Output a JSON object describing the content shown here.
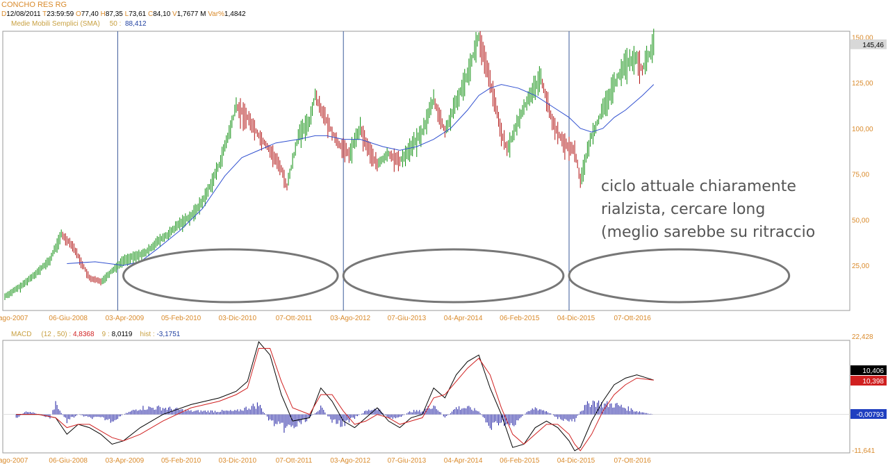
{
  "header": {
    "title": "CONCHO RES RG",
    "ohlc": [
      {
        "k": "D",
        "v": "12/08/2011"
      },
      {
        "k": "T",
        "v": "23:59:59"
      },
      {
        "k": "O",
        "v": "77,40"
      },
      {
        "k": "H",
        "v": "87,35"
      },
      {
        "k": "L",
        "v": "73,61"
      },
      {
        "k": "C",
        "v": "84,10"
      },
      {
        "k": "V",
        "v": "1,7677 M"
      },
      {
        "k": "Var%",
        "v": "1,4842"
      }
    ],
    "sma_label": "Medie Mobili Semplici (SMA)",
    "sma_period": "50 :",
    "sma_value": "88,412"
  },
  "macd_legend": {
    "label": "MACD",
    "params": "(12 , 50) :",
    "macd": "4,8368",
    "signal_period": "9 :",
    "signal": "8,0119",
    "hist_label": "hist :",
    "hist": "-3,1751"
  },
  "annotation": {
    "lines": [
      "ciclo attuale chiaramente",
      "rialzista, cercare long",
      "(meglio sarebbe su ritraccio"
    ]
  },
  "colors": {
    "price": "#0f8f0f",
    "price_down": "#b01010",
    "sma": "#3050d0",
    "macd": "#000000",
    "signal": "#d02020",
    "hist": "#1a1aa0",
    "axis_label": "#d98a2b",
    "cycle_line": "#3a5a9a",
    "ellipse": "#777777"
  },
  "chart_data": [
    {
      "type": "candlestick",
      "title": "CONCHO RES RG",
      "xlabel": "",
      "ylabel": "",
      "ylim": [
        3,
        152
      ],
      "yticks": [
        150,
        125,
        100,
        75,
        50,
        25
      ],
      "ytick_labels": [
        "150,00",
        "125,00",
        "100,00",
        "75,00",
        "50,00",
        "25,00"
      ],
      "last_value_label": "145,46",
      "x_tick_labels": [
        "ago-2007",
        "06-Giu-2008",
        "03-Apr-2009",
        "05-Feb-2010",
        "03-Dic-2010",
        "07-Ott-2011",
        "03-Ago-2012",
        "07-Giu-2013",
        "04-Apr-2014",
        "06-Feb-2015",
        "04-Dic-2015",
        "07-Ott-2016"
      ],
      "x_tick_months": [
        0,
        10,
        20,
        30,
        40,
        50,
        60,
        70,
        80,
        90,
        100,
        110
      ],
      "cycle_markers_months": [
        20,
        60,
        100
      ],
      "price_path": [
        [
          0,
          8
        ],
        [
          3,
          14
        ],
        [
          6,
          22
        ],
        [
          8,
          28
        ],
        [
          10,
          42
        ],
        [
          12,
          36
        ],
        [
          14,
          24
        ],
        [
          15,
          18
        ],
        [
          17,
          16
        ],
        [
          19,
          22
        ],
        [
          21,
          28
        ],
        [
          23,
          30
        ],
        [
          25,
          32
        ],
        [
          27,
          38
        ],
        [
          29,
          42
        ],
        [
          31,
          48
        ],
        [
          33,
          52
        ],
        [
          35,
          60
        ],
        [
          36,
          66
        ],
        [
          38,
          80
        ],
        [
          40,
          100
        ],
        [
          41,
          112
        ],
        [
          43,
          106
        ],
        [
          45,
          96
        ],
        [
          47,
          88
        ],
        [
          49,
          78
        ],
        [
          50,
          68
        ],
        [
          52,
          96
        ],
        [
          54,
          104
        ],
        [
          55,
          118
        ],
        [
          57,
          104
        ],
        [
          59,
          92
        ],
        [
          61,
          86
        ],
        [
          63,
          100
        ],
        [
          64,
          92
        ],
        [
          66,
          80
        ],
        [
          68,
          86
        ],
        [
          70,
          82
        ],
        [
          72,
          90
        ],
        [
          74,
          98
        ],
        [
          76,
          116
        ],
        [
          78,
          98
        ],
        [
          80,
          114
        ],
        [
          82,
          130
        ],
        [
          84,
          150
        ],
        [
          86,
          126
        ],
        [
          88,
          98
        ],
        [
          89,
          88
        ],
        [
          91,
          104
        ],
        [
          93,
          118
        ],
        [
          95,
          128
        ],
        [
          97,
          104
        ],
        [
          99,
          92
        ],
        [
          101,
          88
        ],
        [
          102,
          72
        ],
        [
          104,
          96
        ],
        [
          106,
          110
        ],
        [
          108,
          124
        ],
        [
          110,
          136
        ],
        [
          112,
          138
        ],
        [
          113,
          132
        ],
        [
          115,
          146
        ]
      ],
      "sma_path": [
        [
          11,
          26
        ],
        [
          16,
          27
        ],
        [
          21,
          25
        ],
        [
          24,
          27
        ],
        [
          27,
          34
        ],
        [
          31,
          44
        ],
        [
          35,
          56
        ],
        [
          39,
          74
        ],
        [
          42,
          84
        ],
        [
          45,
          88
        ],
        [
          48,
          92
        ],
        [
          52,
          94
        ],
        [
          55,
          96
        ],
        [
          57,
          96
        ],
        [
          60,
          94
        ],
        [
          63,
          94
        ],
        [
          67,
          90
        ],
        [
          70,
          88
        ],
        [
          73,
          90
        ],
        [
          76,
          94
        ],
        [
          79,
          100
        ],
        [
          82,
          110
        ],
        [
          84,
          118
        ],
        [
          86,
          122
        ],
        [
          88,
          124
        ],
        [
          91,
          122
        ],
        [
          94,
          118
        ],
        [
          97,
          112
        ],
        [
          100,
          106
        ],
        [
          102,
          100
        ],
        [
          104,
          98
        ],
        [
          106,
          100
        ],
        [
          108,
          106
        ],
        [
          110,
          110
        ],
        [
          113,
          118
        ],
        [
          115,
          124
        ]
      ],
      "ellipses_months": [
        {
          "start": 21,
          "end": 59
        },
        {
          "start": 60,
          "end": 99
        },
        {
          "start": 100,
          "end": 139
        }
      ]
    },
    {
      "type": "line",
      "title": "MACD",
      "xlabel": "",
      "ylabel": "",
      "ylim": [
        -11.641,
        22.428
      ],
      "ytick_labels": [
        "22,428",
        "-11,641"
      ],
      "value_labels": [
        {
          "label": "10,406",
          "value": 10.406,
          "kind": "macd"
        },
        {
          "label": "10,398",
          "value": 10.398,
          "kind": "signal"
        },
        {
          "label": "-0,00793",
          "value": -0.00793,
          "kind": "hist"
        }
      ],
      "x_tick_labels": [
        "ago-2007",
        "06-Giu-2008",
        "03-Apr-2009",
        "05-Feb-2010",
        "03-Dic-2010",
        "07-Ott-2011",
        "03-Ago-2012",
        "07-Giu-2013",
        "04-Apr-2014",
        "06-Feb-2015",
        "04-Dic-2015",
        "07-Ott-2016"
      ],
      "series": [
        {
          "key": "macd",
          "values": [
            [
              2,
              0
            ],
            [
              6,
              0
            ],
            [
              9,
              -1
            ],
            [
              11,
              -6
            ],
            [
              13,
              -3
            ],
            [
              15,
              -4
            ],
            [
              17,
              -6
            ],
            [
              19,
              -9
            ],
            [
              21,
              -8
            ],
            [
              24,
              -4
            ],
            [
              28,
              0
            ],
            [
              33,
              3
            ],
            [
              38,
              5
            ],
            [
              41,
              7
            ],
            [
              43,
              10
            ],
            [
              45,
              22
            ],
            [
              47,
              18
            ],
            [
              49,
              6
            ],
            [
              51,
              -2
            ],
            [
              54,
              -1
            ],
            [
              56,
              8
            ],
            [
              58,
              4
            ],
            [
              60,
              -2
            ],
            [
              62,
              -4
            ],
            [
              64,
              -1
            ],
            [
              66,
              2
            ],
            [
              68,
              -2
            ],
            [
              70,
              -4
            ],
            [
              72,
              -1
            ],
            [
              74,
              0
            ],
            [
              76,
              8
            ],
            [
              78,
              5
            ],
            [
              80,
              12
            ],
            [
              82,
              16
            ],
            [
              84,
              18
            ],
            [
              86,
              8
            ],
            [
              88,
              0
            ],
            [
              90,
              -10
            ],
            [
              92,
              -9
            ],
            [
              94,
              -4
            ],
            [
              96,
              -2
            ],
            [
              98,
              -4
            ],
            [
              100,
              -8
            ],
            [
              101,
              -11
            ],
            [
              102,
              -10
            ],
            [
              104,
              -2
            ],
            [
              106,
              4
            ],
            [
              108,
              9
            ],
            [
              110,
              11
            ],
            [
              112,
              12
            ],
            [
              115,
              10.4
            ]
          ]
        },
        {
          "key": "signal",
          "values": [
            [
              2,
              0
            ],
            [
              6,
              0
            ],
            [
              9,
              -1
            ],
            [
              11,
              -4
            ],
            [
              13,
              -3
            ],
            [
              15,
              -3
            ],
            [
              17,
              -5
            ],
            [
              19,
              -7
            ],
            [
              21,
              -8
            ],
            [
              24,
              -6
            ],
            [
              28,
              -2
            ],
            [
              33,
              2
            ],
            [
              38,
              4
            ],
            [
              41,
              6
            ],
            [
              43,
              8
            ],
            [
              45,
              20
            ],
            [
              47,
              20
            ],
            [
              49,
              10
            ],
            [
              51,
              2
            ],
            [
              54,
              0
            ],
            [
              56,
              6
            ],
            [
              58,
              6
            ],
            [
              60,
              1
            ],
            [
              62,
              -3
            ],
            [
              64,
              -2
            ],
            [
              66,
              0
            ],
            [
              68,
              -1
            ],
            [
              70,
              -3
            ],
            [
              72,
              -2
            ],
            [
              74,
              -1
            ],
            [
              76,
              5
            ],
            [
              78,
              6
            ],
            [
              80,
              10
            ],
            [
              82,
              14
            ],
            [
              84,
              17
            ],
            [
              86,
              12
            ],
            [
              88,
              2
            ],
            [
              90,
              -6
            ],
            [
              92,
              -9
            ],
            [
              94,
              -6
            ],
            [
              96,
              -3
            ],
            [
              98,
              -3
            ],
            [
              100,
              -6
            ],
            [
              101,
              -9
            ],
            [
              102,
              -11
            ],
            [
              104,
              -6
            ],
            [
              106,
              1
            ],
            [
              108,
              6
            ],
            [
              110,
              9
            ],
            [
              112,
              11
            ],
            [
              115,
              10.4
            ]
          ]
        },
        {
          "key": "hist",
          "values": [
            [
              2,
              -1
            ],
            [
              4,
              1
            ],
            [
              6,
              0
            ],
            [
              8,
              -1
            ],
            [
              9,
              3
            ],
            [
              11,
              -2
            ],
            [
              13,
              0
            ],
            [
              15,
              -1
            ],
            [
              17,
              -1
            ],
            [
              19,
              -2
            ],
            [
              21,
              0
            ],
            [
              24,
              2
            ],
            [
              28,
              2
            ],
            [
              33,
              1
            ],
            [
              38,
              1
            ],
            [
              41,
              1
            ],
            [
              43,
              2
            ],
            [
              45,
              3
            ],
            [
              47,
              -2
            ],
            [
              49,
              -4
            ],
            [
              51,
              -4
            ],
            [
              54,
              -1
            ],
            [
              56,
              2
            ],
            [
              58,
              -2
            ],
            [
              60,
              -3
            ],
            [
              62,
              -1
            ],
            [
              64,
              1
            ],
            [
              66,
              2
            ],
            [
              68,
              -1
            ],
            [
              70,
              -1
            ],
            [
              72,
              1
            ],
            [
              74,
              1
            ],
            [
              76,
              3
            ],
            [
              78,
              -1
            ],
            [
              80,
              2
            ],
            [
              82,
              2
            ],
            [
              84,
              1
            ],
            [
              86,
              -4
            ],
            [
              88,
              -2
            ],
            [
              90,
              -4
            ],
            [
              92,
              0
            ],
            [
              94,
              2
            ],
            [
              96,
              1
            ],
            [
              98,
              -1
            ],
            [
              100,
              -2
            ],
            [
              101,
              -2
            ],
            [
              102,
              1
            ],
            [
              104,
              4
            ],
            [
              106,
              3
            ],
            [
              108,
              3
            ],
            [
              110,
              2
            ],
            [
              112,
              1
            ],
            [
              115,
              0
            ]
          ]
        }
      ]
    }
  ]
}
